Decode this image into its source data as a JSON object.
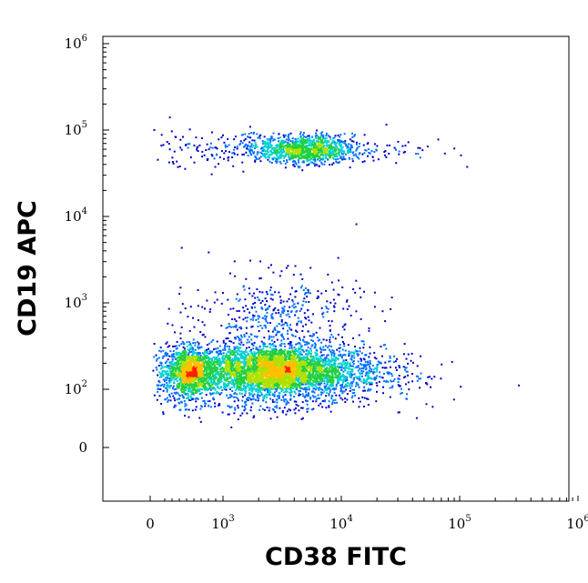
{
  "chart_data": {
    "type": "scatter",
    "xlabel": "CD38 FITC",
    "ylabel": "CD19 APC",
    "x_scale": "biexponential",
    "y_scale": "biexponential",
    "x_ticks": [
      {
        "base": "0",
        "exp": ""
      },
      {
        "base": "10",
        "exp": "3"
      },
      {
        "base": "10",
        "exp": "4"
      },
      {
        "base": "10",
        "exp": "5"
      },
      {
        "base": "10",
        "exp": "6"
      }
    ],
    "y_ticks": [
      {
        "base": "0",
        "exp": ""
      },
      {
        "base": "10",
        "exp": "2"
      },
      {
        "base": "10",
        "exp": "3"
      },
      {
        "base": "10",
        "exp": "4"
      },
      {
        "base": "10",
        "exp": "5"
      },
      {
        "base": "10",
        "exp": "6"
      }
    ],
    "xlim": [
      -500,
      1000000
    ],
    "ylim": [
      -100,
      1000000
    ],
    "density_colormap": [
      "#0000c8",
      "#0070ff",
      "#00d0d0",
      "#20d040",
      "#b0e000",
      "#ffc000",
      "#ff2000"
    ],
    "populations": [
      {
        "cx_log10": 3.35,
        "cy_log10": 2.2,
        "sx": 0.5,
        "sy": 0.16,
        "weight": 0.55
      },
      {
        "cx_log10": 2.75,
        "cy_log10": 2.22,
        "sx": 0.1,
        "sy": 0.12,
        "weight": 0.1
      },
      {
        "cx_log10": 3.5,
        "cy_log10": 2.25,
        "sx": 0.15,
        "sy": 0.12,
        "weight": 0.1
      },
      {
        "cx_log10": 3.45,
        "cy_log10": 2.85,
        "sx": 0.35,
        "sy": 0.25,
        "weight": 0.06
      },
      {
        "cx_log10": 3.7,
        "cy_log10": 4.78,
        "sx": 0.2,
        "sy": 0.08,
        "weight": 0.12
      },
      {
        "cx_log10": 3.5,
        "cy_log10": 4.8,
        "sx": 0.55,
        "sy": 0.1,
        "weight": 0.05
      }
    ]
  }
}
